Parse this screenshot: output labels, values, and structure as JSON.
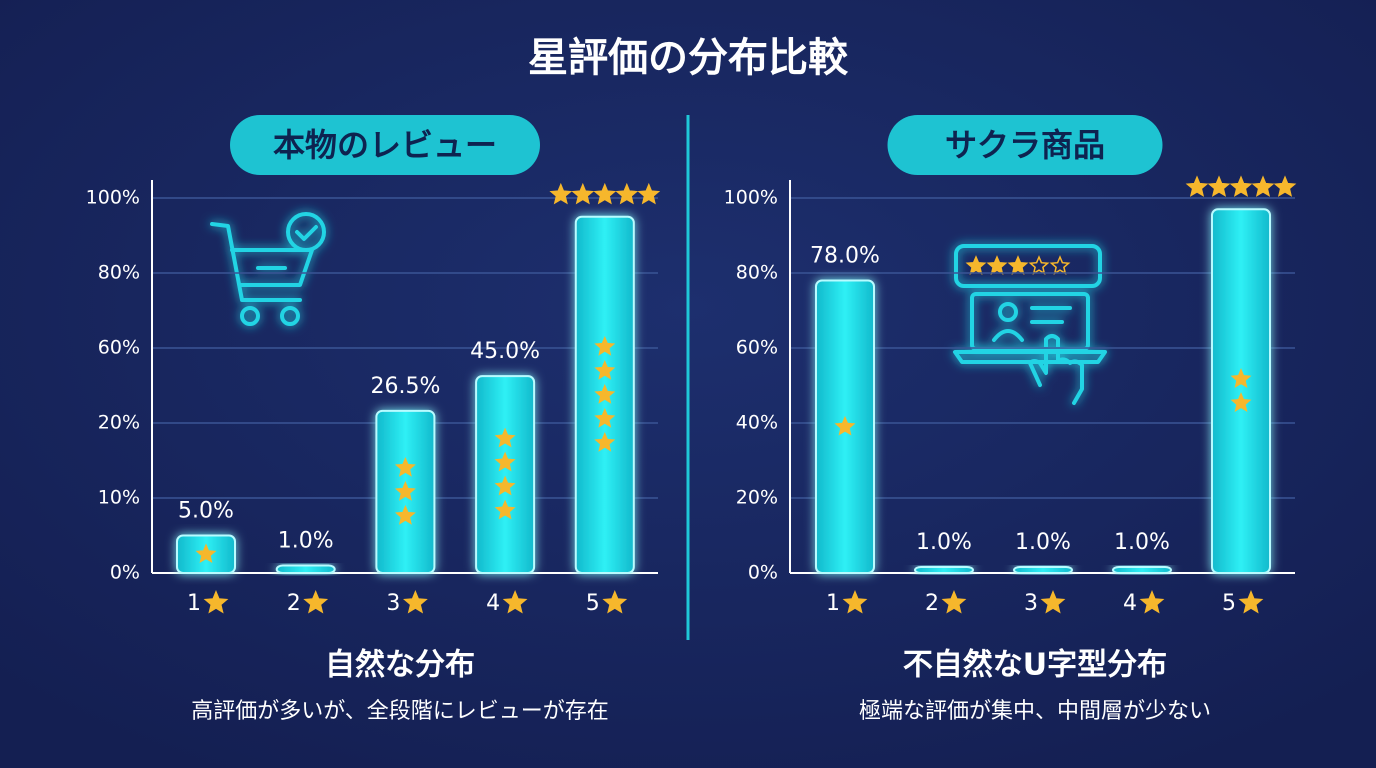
{
  "title": "星評価の分布比較",
  "chart_data": [
    {
      "type": "bar",
      "title": "本物のレビュー",
      "annotation": "自然な分布",
      "note": "高評価が多いが、全段階にレビューが存在",
      "categories": [
        "1",
        "2",
        "3",
        "4",
        "5"
      ],
      "values": [
        5,
        1,
        26.5,
        45,
        95
      ],
      "value_labels": [
        "5.0%",
        "1.0%",
        "26.5%",
        "45.0%",
        null
      ],
      "color": "#19d3e0",
      "ylim": [
        0,
        100
      ],
      "yticks": [
        {
          "value": 0,
          "label": "0%"
        },
        {
          "value": 10,
          "label": "10%"
        },
        {
          "value": 20,
          "label": "20%"
        },
        {
          "value": 60,
          "label": "60%"
        },
        {
          "value": 80,
          "label": "80%"
        },
        {
          "value": 100,
          "label": "100%"
        }
      ],
      "grid": true
    },
    {
      "type": "bar",
      "title": "サクラ商品",
      "annotation": "不自然なU字型分布",
      "note": "極端な評価が集中、中間層が少ない",
      "categories": [
        "1",
        "2",
        "3",
        "4",
        "5"
      ],
      "values": [
        78,
        1,
        1,
        1,
        97
      ],
      "value_labels": [
        "78.0%",
        "1.0%",
        "1.0%",
        "1.0%",
        null
      ],
      "color": "#19d3e0",
      "ylim": [
        0,
        100
      ],
      "yticks": [
        {
          "value": 0,
          "label": "0%"
        },
        {
          "value": 20,
          "label": "20%"
        },
        {
          "value": 40,
          "label": "40%"
        },
        {
          "value": 60,
          "label": "60%"
        },
        {
          "value": 80,
          "label": "80%"
        },
        {
          "value": 100,
          "label": "100%"
        }
      ],
      "grid": true
    }
  ]
}
